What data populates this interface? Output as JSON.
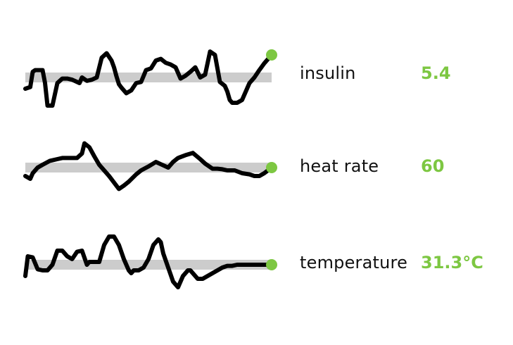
{
  "chart_data": {
    "type": "line",
    "chart_kind": "sparkline-list",
    "grid": false,
    "point_color": "#7dc742",
    "value_color": "#7dc742",
    "line_color": "#000000",
    "band_color": "#cccccc",
    "rows": [
      {
        "label": "insulin",
        "value": "5.4",
        "ylim": [
          0,
          100
        ],
        "baseline": 50,
        "x": [
          0,
          2,
          3,
          4,
          5,
          7,
          8,
          9,
          10,
          11,
          13,
          15,
          17,
          19,
          21,
          22,
          23,
          25,
          27,
          29,
          31,
          33,
          35,
          36,
          37,
          38,
          39,
          41,
          43,
          45,
          47,
          49,
          51,
          53,
          55,
          57,
          59,
          61,
          63,
          65,
          67,
          69,
          71,
          73,
          75,
          77,
          79,
          81,
          82,
          83,
          84,
          86,
          88,
          89,
          90,
          91,
          93,
          95,
          97,
          100
        ],
        "y": [
          30,
          33,
          60,
          63,
          63,
          63,
          40,
          0,
          0,
          0,
          40,
          48,
          48,
          46,
          42,
          40,
          50,
          44,
          46,
          50,
          85,
          93,
          80,
          68,
          52,
          38,
          32,
          22,
          27,
          40,
          42,
          63,
          66,
          80,
          83,
          76,
          73,
          68,
          48,
          53,
          60,
          68,
          50,
          55,
          96,
          90,
          42,
          35,
          25,
          10,
          5,
          5,
          10,
          20,
          30,
          40,
          50,
          63,
          75,
          90
        ]
      },
      {
        "label": "heat rate",
        "value": "60",
        "ylim": [
          0,
          100
        ],
        "baseline": 50,
        "x": [
          0,
          2,
          3,
          5,
          7,
          10,
          13,
          15,
          18,
          21,
          23,
          24,
          26,
          28,
          30,
          34,
          38,
          40,
          42,
          45,
          47,
          50,
          53,
          55,
          58,
          60,
          62,
          65,
          68,
          71,
          73,
          76,
          78,
          80,
          82,
          85,
          88,
          91,
          93,
          95,
          97,
          100
        ],
        "y": [
          35,
          30,
          40,
          50,
          55,
          62,
          65,
          67,
          67,
          67,
          75,
          93,
          86,
          70,
          55,
          35,
          12,
          18,
          25,
          38,
          45,
          52,
          60,
          56,
          50,
          60,
          67,
          72,
          76,
          65,
          57,
          48,
          48,
          47,
          45,
          45,
          40,
          38,
          35,
          35,
          40,
          50
        ]
      },
      {
        "label": "temperature",
        "value": "31.3°C",
        "ylim": [
          0,
          100
        ],
        "baseline": 50,
        "x": [
          0,
          1,
          3,
          5,
          7,
          9,
          11,
          13,
          15,
          17,
          19,
          21,
          23,
          25,
          26,
          28,
          30,
          32,
          34,
          36,
          38,
          40,
          42,
          43,
          44,
          46,
          48,
          50,
          52,
          54,
          55,
          56,
          58,
          60,
          62,
          64,
          66,
          67,
          68,
          70,
          72,
          74,
          76,
          78,
          80,
          82,
          84,
          86,
          88,
          90,
          92,
          94,
          96,
          98,
          100
        ],
        "y": [
          30,
          65,
          63,
          42,
          40,
          40,
          50,
          75,
          75,
          65,
          60,
          73,
          75,
          50,
          55,
          55,
          55,
          85,
          100,
          100,
          85,
          60,
          40,
          35,
          40,
          40,
          45,
          60,
          85,
          95,
          90,
          70,
          45,
          20,
          10,
          30,
          40,
          40,
          35,
          25,
          25,
          30,
          35,
          40,
          45,
          48,
          48,
          50,
          50,
          50,
          50,
          50,
          50,
          50,
          50
        ]
      }
    ]
  }
}
